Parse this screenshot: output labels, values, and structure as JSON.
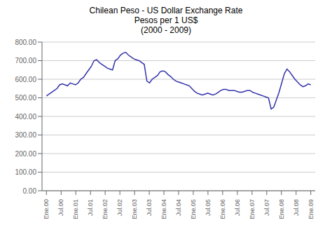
{
  "chart_data": {
    "type": "line",
    "title": "Chilean Peso - US Dollar Exchange Rate\nPesos per 1 US$\n(2000 - 2009)",
    "color": "#3333aa",
    "grid": "y",
    "x": [
      0,
      0.18,
      0.36,
      0.54,
      0.72,
      0.9,
      1.08,
      1.26,
      1.44,
      1.62,
      1.8,
      1.98,
      2.16,
      2.34,
      2.52,
      2.7,
      2.88,
      3.06,
      3.24,
      3.42,
      3.6,
      3.78,
      3.96,
      4.14,
      4.32,
      4.5,
      4.68,
      4.86,
      5.04,
      5.22,
      5.4,
      5.58,
      5.76,
      5.94,
      6.12,
      6.3,
      6.48,
      6.66,
      6.84,
      7.02,
      7.2,
      7.38,
      7.56,
      7.74,
      7.92,
      8.1,
      8.28,
      8.46,
      8.64,
      8.82,
      9,
      9.18,
      9.36,
      9.54,
      9.72,
      9.9,
      10.08,
      10.26,
      10.44,
      10.62,
      10.8,
      10.98,
      11.16,
      11.34,
      11.52,
      11.7,
      11.88,
      12.06,
      12.24,
      12.42,
      12.6,
      12.78,
      12.96,
      13.14,
      13.32,
      13.5,
      13.68,
      13.86,
      14.04,
      14.22,
      14.4,
      14.58,
      14.76,
      14.94,
      15.12,
      15.3,
      15.48,
      15.66,
      15.84,
      16.02,
      16.2,
      16.38,
      16.56,
      16.74,
      16.92,
      17.1,
      17.28,
      17.46,
      17.64,
      17.82,
      18
    ],
    "values": [
      510,
      520,
      530,
      540,
      550,
      570,
      575,
      570,
      565,
      580,
      575,
      570,
      580,
      600,
      610,
      630,
      650,
      670,
      700,
      705,
      690,
      680,
      670,
      660,
      655,
      650,
      700,
      710,
      730,
      740,
      745,
      730,
      720,
      710,
      705,
      700,
      690,
      680,
      590,
      580,
      600,
      610,
      620,
      640,
      645,
      640,
      625,
      615,
      600,
      590,
      585,
      580,
      575,
      570,
      565,
      550,
      535,
      525,
      520,
      515,
      520,
      525,
      520,
      515,
      520,
      530,
      540,
      545,
      545,
      540,
      540,
      540,
      535,
      530,
      530,
      535,
      540,
      540,
      530,
      525,
      520,
      515,
      510,
      505,
      500,
      440,
      450,
      490,
      530,
      580,
      630,
      655,
      640,
      620,
      600,
      585,
      570,
      560,
      565,
      575,
      570
    ],
    "xlim": [
      -0.3,
      18.3
    ],
    "xticks": [
      {
        "value": 0,
        "label": "Ene.00"
      },
      {
        "value": 1,
        "label": "Jul.00"
      },
      {
        "value": 2,
        "label": "Ene.01"
      },
      {
        "value": 3,
        "label": "Jul.01"
      },
      {
        "value": 4,
        "label": "Ene.02"
      },
      {
        "value": 5,
        "label": "Jul.02"
      },
      {
        "value": 6,
        "label": "Ene.03"
      },
      {
        "value": 7,
        "label": "Jul.03"
      },
      {
        "value": 8,
        "label": "Ene.04"
      },
      {
        "value": 9,
        "label": "Jul.04"
      },
      {
        "value": 10,
        "label": "Ene.05"
      },
      {
        "value": 11,
        "label": "Jul.05"
      },
      {
        "value": 12,
        "label": "Ene.06"
      },
      {
        "value": 13,
        "label": "Jul.06"
      },
      {
        "value": 14,
        "label": "Ene.07"
      },
      {
        "value": 15,
        "label": "Jul.07"
      },
      {
        "value": 16,
        "label": "Ene.08"
      },
      {
        "value": 17,
        "label": "Jul.08"
      },
      {
        "value": 18,
        "label": "Ene.09"
      }
    ],
    "ylim": [
      0,
      800
    ],
    "yticks": [
      {
        "value": 0,
        "label": "0.00"
      },
      {
        "value": 100,
        "label": "100.00"
      },
      {
        "value": 200,
        "label": "200.00"
      },
      {
        "value": 300,
        "label": "300.00"
      },
      {
        "value": 400,
        "label": "400.00"
      },
      {
        "value": 500,
        "label": "500.00"
      },
      {
        "value": 600,
        "label": "600.00"
      },
      {
        "value": 700,
        "label": "700.00"
      },
      {
        "value": 800,
        "label": "800.00"
      }
    ]
  }
}
